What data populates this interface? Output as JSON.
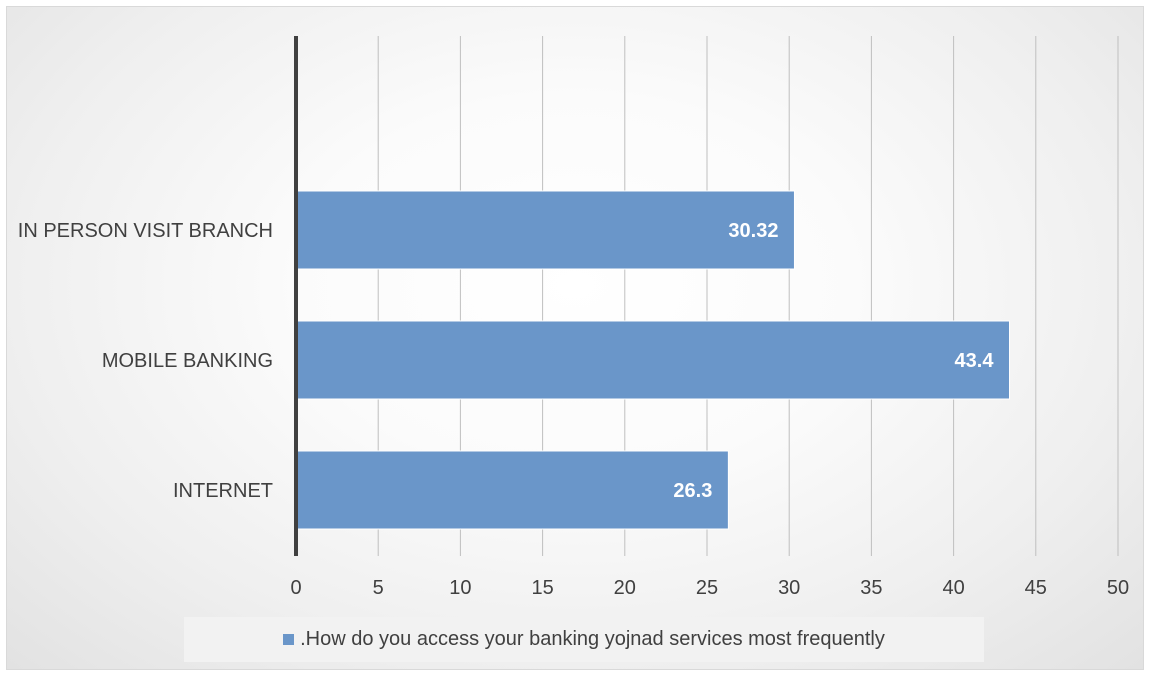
{
  "chart_data": {
    "type": "bar",
    "orientation": "horizontal",
    "categories": [
      "IN PERSON VISIT BRANCH",
      "MOBILE BANKING",
      "INTERNET"
    ],
    "series": [
      {
        "name": ".How do you access your banking yojnad services most frequently",
        "values": [
          30.32,
          43.4,
          26.3
        ],
        "data_labels": [
          "30.32",
          "43.4",
          "26.3"
        ],
        "color": "#6a96c9"
      }
    ],
    "xlim": [
      0,
      50
    ],
    "x_ticks": [
      0,
      5,
      10,
      15,
      20,
      25,
      30,
      35,
      40,
      45,
      50
    ],
    "grid": "vertical",
    "legend_position": "bottom"
  }
}
